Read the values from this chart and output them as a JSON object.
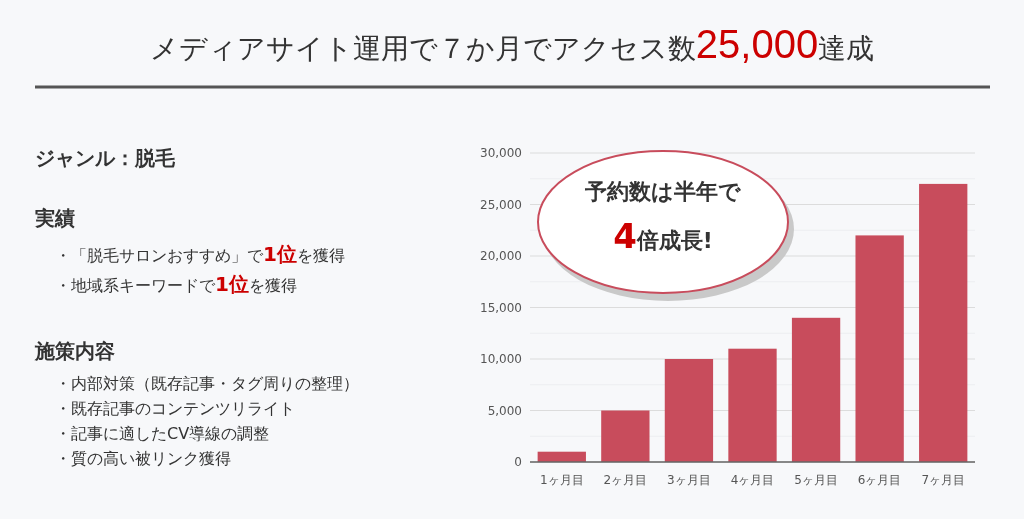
{
  "chart_data": {
    "type": "bar",
    "title": "メディアサイト運用で７か月でアクセス数**25,000**達成",
    "categories": [
      "1ヶ月目",
      "2ヶ月目",
      "3ヶ月目",
      "4ヶ月目",
      "5ヶ月目",
      "6ヶ月目",
      "7ヶ月目"
    ],
    "values": [
      1000,
      5000,
      10000,
      11000,
      14000,
      22000,
      27000
    ],
    "color": "#c84c5c",
    "ylim": [
      0,
      30000
    ],
    "yticks": [
      {
        "value": 0,
        "label": "0"
      },
      {
        "value": 2500,
        "label": null
      },
      {
        "value": 5000,
        "label": "5,000"
      },
      {
        "value": 7500,
        "label": null
      },
      {
        "value": 10000,
        "label": "10,000"
      },
      {
        "value": 12500,
        "label": null
      },
      {
        "value": 15000,
        "label": "15,000"
      },
      {
        "value": 17500,
        "label": null
      },
      {
        "value": 20000,
        "label": "20,000"
      },
      {
        "value": 22500,
        "label": null
      },
      {
        "value": 25000,
        "label": "25,000"
      },
      {
        "value": 27500,
        "label": null
      },
      {
        "value": 30000,
        "label": "30,000"
      }
    ],
    "grid": "y",
    "annotations": [
      "ジャンル：脱毛",
      "実績",
      "・「脱毛サロンおすすめ」で**1位**を獲得",
      "・地域系キーワードで**1位**を獲得",
      "施策内容",
      "・内部対策（既存記事・タグ周りの整理）",
      "・既存記事のコンテンツリライト",
      "・記事に適したCV導線の調整",
      "・質の高い被リンク獲得",
      "予約数は半年で**4**倍成長!"
    ]
  }
}
